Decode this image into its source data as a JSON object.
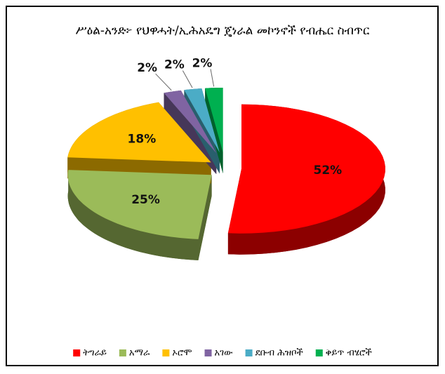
{
  "chart_data": {
    "type": "pie",
    "title": "ሥዕል-አንድ፦ የህዋሓት/ኢሕአዴግ ጄነራል መኮንኖች የብሔር ስብጥር",
    "categories": [
      "ትግራይ",
      "አማራ",
      "ኦሮሞ",
      "አገው",
      "ደቡብ ሕዝቦች",
      "ቅይጥ ብሄሮች"
    ],
    "values": [
      52,
      25,
      18,
      2,
      2,
      2
    ],
    "value_labels": [
      "52%",
      "25%",
      "18%",
      "2%",
      "2%",
      "2%"
    ],
    "colors": [
      "#ff0000",
      "#9bbb59",
      "#ffc000",
      "#8064a2",
      "#4bacc6",
      "#00b050"
    ],
    "legend": "bottom"
  }
}
